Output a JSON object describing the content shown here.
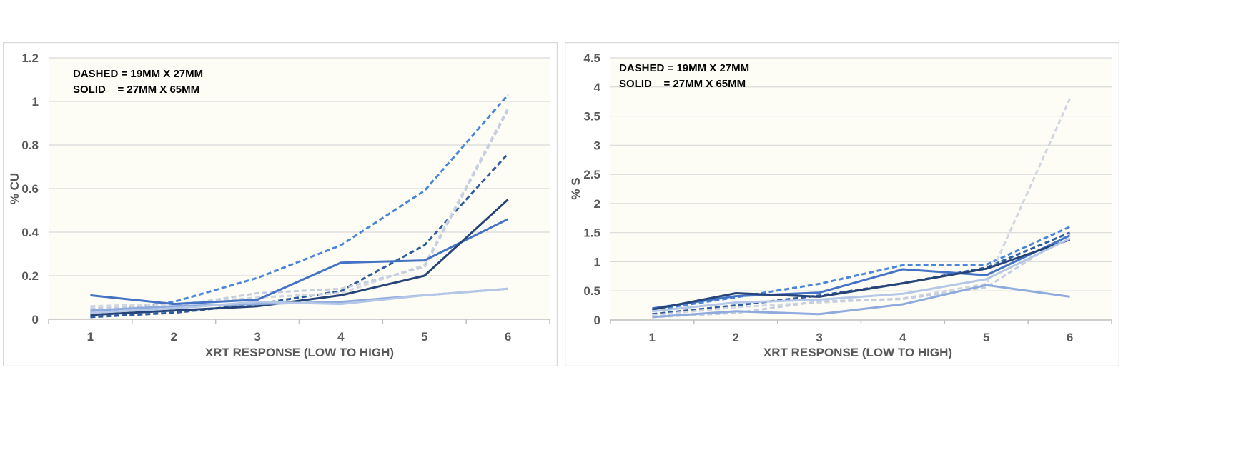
{
  "colors": {
    "plot_bg": "#fdfdf5",
    "panel_border": "#d9d9d9",
    "gridline": "#d9d9d9",
    "axis_line": "#bfbfbf",
    "text": "#595959"
  },
  "chart_data": [
    {
      "type": "line",
      "xlabel": "XRT RESPONSE (LOW TO HIGH)",
      "ylabel": "% CU",
      "categories": [
        "1",
        "2",
        "3",
        "4",
        "5",
        "6"
      ],
      "ylim": [
        0,
        1.2
      ],
      "yticks": [
        0,
        0.2,
        0.4,
        0.6,
        0.8,
        1,
        1.2
      ],
      "ytick_labels": [
        "0",
        "0.2",
        "0.4",
        "0.6",
        "0.8",
        "1",
        "1.2"
      ],
      "grid": true,
      "annotations": [
        "DASHED = 19MM X 27MM",
        "SOLID    = 27MM X 65MM"
      ],
      "series": [
        {
          "values": [
            0.11,
            0.07,
            0.09,
            0.26,
            0.27,
            0.46
          ],
          "color": "#4472c4",
          "style": "solid"
        },
        {
          "values": [
            0.02,
            0.04,
            0.06,
            0.11,
            0.2,
            0.55
          ],
          "color": "#264478",
          "style": "solid"
        },
        {
          "values": [
            0.04,
            0.06,
            0.07,
            0.08,
            0.11,
            0.14
          ],
          "color": "#8faadc",
          "style": "solid"
        },
        {
          "values": [
            0.03,
            0.05,
            0.08,
            0.07,
            0.11,
            0.14
          ],
          "color": "#b4c7e7",
          "style": "solid"
        },
        {
          "values": [
            0.03,
            0.08,
            0.19,
            0.34,
            0.59,
            1.03
          ],
          "color": "#4a86d8",
          "style": "dashed"
        },
        {
          "values": [
            0.01,
            0.03,
            0.07,
            0.13,
            0.34,
            0.76
          ],
          "color": "#2e5a9e",
          "style": "dashed"
        },
        {
          "values": [
            0.06,
            0.07,
            0.1,
            0.12,
            0.25,
            0.97
          ],
          "color": "#d0d6e2",
          "style": "dashed"
        },
        {
          "values": [
            0.05,
            0.06,
            0.12,
            0.14,
            0.24,
            0.96
          ],
          "color": "#c5cde0",
          "style": "dashed"
        }
      ]
    },
    {
      "type": "line",
      "xlabel": "XRT RESPONSE (LOW TO HIGH)",
      "ylabel": "% S",
      "categories": [
        "1",
        "2",
        "3",
        "4",
        "5",
        "6"
      ],
      "ylim": [
        0,
        4.5
      ],
      "yticks": [
        0,
        0.5,
        1,
        1.5,
        2,
        2.5,
        3,
        3.5,
        4,
        4.5
      ],
      "ytick_labels": [
        "0",
        "0.5",
        "1",
        "1.5",
        "2",
        "2.5",
        "3",
        "3.5",
        "4",
        "4.5"
      ],
      "grid": true,
      "annotations": [
        "DASHED = 19MM X 27MM",
        "SOLID    = 27MM X 65MM"
      ],
      "series": [
        {
          "values": [
            0.2,
            0.41,
            0.47,
            0.87,
            0.77,
            1.45
          ],
          "color": "#4472c4",
          "style": "solid"
        },
        {
          "values": [
            0.18,
            0.46,
            0.4,
            0.63,
            0.88,
            1.38
          ],
          "color": "#264478",
          "style": "solid"
        },
        {
          "values": [
            0.05,
            0.15,
            0.1,
            0.27,
            0.6,
            0.4
          ],
          "color": "#8faadc",
          "style": "solid"
        },
        {
          "values": [
            0.15,
            0.3,
            0.35,
            0.45,
            0.7,
            1.4
          ],
          "color": "#b4c7e7",
          "style": "solid"
        },
        {
          "values": [
            0.17,
            0.39,
            0.62,
            0.94,
            0.95,
            1.6
          ],
          "color": "#4a86d8",
          "style": "dashed"
        },
        {
          "values": [
            0.1,
            0.25,
            0.42,
            0.63,
            0.9,
            1.5
          ],
          "color": "#2e5a9e",
          "style": "dashed"
        },
        {
          "values": [
            0.08,
            0.22,
            0.3,
            0.37,
            0.62,
            3.8
          ],
          "color": "#d0d6e2",
          "style": "dashed"
        },
        {
          "values": [
            0.05,
            0.12,
            0.32,
            0.36,
            0.56,
            1.48
          ],
          "color": "#c5cde0",
          "style": "dashed"
        }
      ]
    }
  ]
}
